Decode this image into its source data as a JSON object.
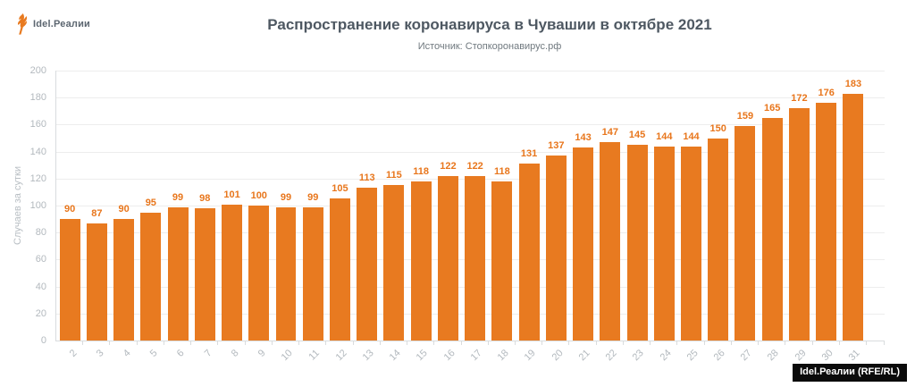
{
  "logo": {
    "text": "Idel.Реалии",
    "icon": "torch-flame-icon",
    "icon_color": "#e87a20"
  },
  "header": {
    "title": "Распространение коронавируса в Чувашии в октябре 2021",
    "subtitle": "Источник: Стопкоронавирус.рф"
  },
  "watermark": {
    "text": "Idel.Реалии (RFE/RL)"
  },
  "colors": {
    "bar": "#e87a20",
    "value_label": "#e8761c",
    "title": "#4e5862",
    "subtitle": "#70797f",
    "axis_text": "#b3b9be",
    "gridline": "#ededed",
    "axis_line": "#d9dcde",
    "watermark_bg": "#0b0b0b",
    "watermark_text": "#ffffff"
  },
  "chart_data": {
    "type": "bar",
    "title": "Распространение коронавируса в Чувашии в октябре 2021",
    "subtitle": "Источник: Стопкоронавирус.рф",
    "categories": [
      "2",
      "3",
      "4",
      "5",
      "6",
      "7",
      "8",
      "9",
      "10",
      "11",
      "12",
      "13",
      "14",
      "15",
      "16",
      "17",
      "18",
      "19",
      "20",
      "21",
      "22",
      "23",
      "24",
      "25",
      "26",
      "27",
      "28",
      "29",
      "30",
      "31"
    ],
    "values": [
      90,
      87,
      90,
      95,
      99,
      98,
      101,
      100,
      99,
      99,
      105,
      113,
      115,
      118,
      122,
      122,
      118,
      131,
      137,
      143,
      147,
      145,
      144,
      144,
      150,
      159,
      165,
      172,
      176,
      183
    ],
    "xlabel": "",
    "ylabel": "Случаев за сутки",
    "ylim": [
      0,
      200
    ],
    "ytick_step": 20,
    "grid": true,
    "legend": false,
    "data_labels": true
  }
}
